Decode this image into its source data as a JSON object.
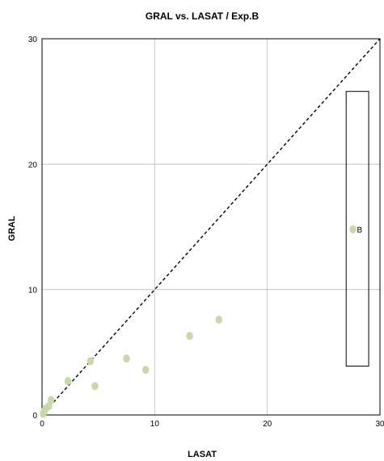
{
  "chart_data": {
    "type": "scatter",
    "title": "GRAL vs. LASAT / Exp.B",
    "xlabel": "LASAT",
    "ylabel": "GRAL",
    "xlim": [
      0,
      30
    ],
    "ylim": [
      0,
      30
    ],
    "x_ticks": [
      "0",
      "10",
      "20",
      "30"
    ],
    "y_ticks": [
      "0",
      "10",
      "20",
      "30"
    ],
    "grid": true,
    "reference_line": "y = x",
    "colors": {
      "points": "#c9d8a8",
      "grid": "#bdbdbd"
    },
    "points": [
      {
        "x": 0.1,
        "y": 0.1
      },
      {
        "x": 0.2,
        "y": 0.3
      },
      {
        "x": 0.3,
        "y": 0.5
      },
      {
        "x": 0.6,
        "y": 0.7
      },
      {
        "x": 0.8,
        "y": 1.2
      },
      {
        "x": 2.3,
        "y": 2.7
      },
      {
        "x": 4.3,
        "y": 4.3
      },
      {
        "x": 4.7,
        "y": 2.3
      },
      {
        "x": 7.5,
        "y": 4.5
      },
      {
        "x": 9.2,
        "y": 3.6
      },
      {
        "x": 13.1,
        "y": 6.3
      },
      {
        "x": 15.7,
        "y": 7.6
      },
      {
        "x": 27.6,
        "y": 14.8
      }
    ],
    "annotation": {
      "label": "B",
      "point_x": 27.6,
      "point_y": 14.8,
      "range_x": [
        27.0,
        29.0
      ],
      "range_y": [
        3.9,
        25.8
      ]
    }
  }
}
